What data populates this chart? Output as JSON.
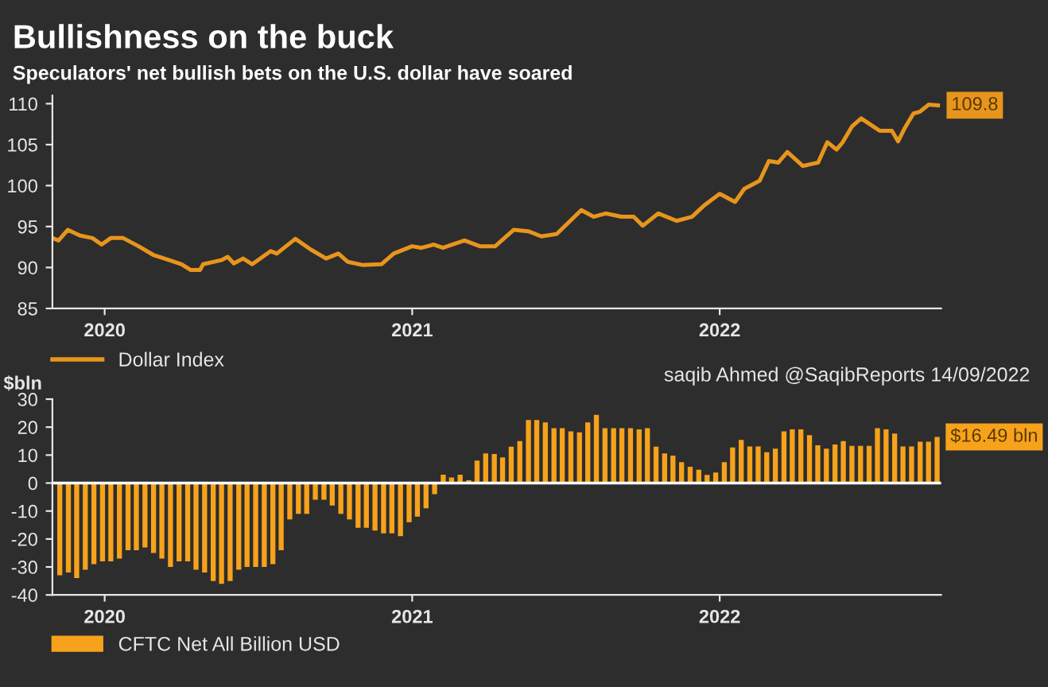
{
  "chart_data": [
    {
      "type": "line",
      "title": "Bullishness on the buck",
      "subtitle": "Speculators' net bullish bets on the U.S. dollar have soared",
      "xlim": [
        2019.83,
        2022.72
      ],
      "xticks": [
        2020,
        2021,
        2022
      ],
      "ylim": [
        85,
        111
      ],
      "yticks": [
        85,
        90,
        95,
        100,
        105,
        110
      ],
      "grid": false,
      "legend": "bottom left",
      "marker": "none",
      "line_style": "solid",
      "series": [
        {
          "name": "Dollar Index",
          "color": "#e8951d",
          "x": [
            2019.83,
            2019.85,
            2019.88,
            2019.92,
            2019.96,
            2019.99,
            2020.02,
            2020.06,
            2020.11,
            2020.16,
            2020.21,
            2020.25,
            2020.28,
            2020.31,
            2020.32,
            2020.38,
            2020.4,
            2020.42,
            2020.45,
            2020.48,
            2020.54,
            2020.56,
            2020.62,
            2020.67,
            2020.72,
            2020.76,
            2020.79,
            2020.84,
            2020.9,
            2020.94,
            2021.0,
            2021.03,
            2021.07,
            2021.1,
            2021.17,
            2021.22,
            2021.27,
            2021.33,
            2021.38,
            2021.42,
            2021.47,
            2021.55,
            2021.59,
            2021.63,
            2021.68,
            2021.72,
            2021.75,
            2021.8,
            2021.86,
            2021.91,
            2021.95,
            2022.0,
            2022.05,
            2022.08,
            2022.13,
            2022.16,
            2022.19,
            2022.22,
            2022.27,
            2022.32,
            2022.35,
            2022.38,
            2022.4,
            2022.43,
            2022.46,
            2022.52,
            2022.56,
            2022.58,
            2022.6,
            2022.63,
            2022.65,
            2022.68,
            2022.71
          ],
          "values": [
            93.6,
            93.3,
            94.6,
            93.9,
            93.6,
            92.8,
            93.6,
            93.6,
            92.6,
            91.5,
            90.9,
            90.4,
            89.7,
            89.7,
            90.4,
            90.9,
            91.3,
            90.5,
            91.1,
            90.4,
            92.0,
            91.7,
            93.5,
            92.2,
            91.1,
            91.7,
            90.7,
            90.3,
            90.4,
            91.7,
            92.6,
            92.4,
            92.8,
            92.4,
            93.3,
            92.6,
            92.6,
            94.6,
            94.4,
            93.8,
            94.1,
            97.0,
            96.2,
            96.6,
            96.2,
            96.2,
            95.1,
            96.6,
            95.7,
            96.2,
            97.6,
            99.0,
            98.0,
            99.6,
            100.6,
            103.0,
            102.8,
            104.1,
            102.4,
            102.8,
            105.3,
            104.4,
            105.3,
            107.2,
            108.2,
            106.7,
            106.7,
            105.4,
            106.9,
            108.8,
            109.0,
            109.9,
            109.8
          ]
        }
      ],
      "annotations": [
        {
          "text": "109.8",
          "x": 2022.71,
          "y": 109.8
        }
      ]
    },
    {
      "type": "bar",
      "ylabel": "$bln",
      "xlim": [
        2019.83,
        2022.72
      ],
      "xticks": [
        2020,
        2021,
        2022
      ],
      "ylim": [
        -40,
        30
      ],
      "yticks": [
        -40,
        -30,
        -20,
        -10,
        0,
        10,
        20,
        30
      ],
      "grid": false,
      "legend": "bottom left",
      "ref_lines": [
        {
          "axis": "y",
          "value": 0,
          "color": "#ffffff"
        }
      ],
      "series": [
        {
          "name": "CFTC Net All Billion USD",
          "color": "#f7a21b",
          "x": [
            2019.854,
            2019.882,
            2019.909,
            2019.937,
            2019.965,
            2019.993,
            2020.02,
            2020.048,
            2020.076,
            2020.103,
            2020.131,
            2020.159,
            2020.186,
            2020.214,
            2020.242,
            2020.27,
            2020.297,
            2020.325,
            2020.353,
            2020.38,
            2020.408,
            2020.436,
            2020.463,
            2020.491,
            2020.519,
            2020.547,
            2020.574,
            2020.602,
            2020.63,
            2020.657,
            2020.685,
            2020.713,
            2020.74,
            2020.768,
            2020.796,
            2020.824,
            2020.851,
            2020.879,
            2020.907,
            2020.934,
            2020.962,
            2020.99,
            2021.017,
            2021.045,
            2021.073,
            2021.101,
            2021.128,
            2021.156,
            2021.184,
            2021.211,
            2021.239,
            2021.267,
            2021.294,
            2021.322,
            2021.35,
            2021.378,
            2021.405,
            2021.433,
            2021.461,
            2021.488,
            2021.516,
            2021.544,
            2021.571,
            2021.599,
            2021.627,
            2021.655,
            2021.682,
            2021.71,
            2021.738,
            2021.765,
            2021.793,
            2021.821,
            2021.848,
            2021.876,
            2021.904,
            2021.932,
            2021.959,
            2021.987,
            2022.015,
            2022.042,
            2022.07,
            2022.098,
            2022.125,
            2022.153,
            2022.181,
            2022.209,
            2022.236,
            2022.264,
            2022.292,
            2022.319,
            2022.347,
            2022.375,
            2022.402,
            2022.43,
            2022.458,
            2022.486,
            2022.513,
            2022.541,
            2022.569,
            2022.596,
            2022.624,
            2022.652,
            2022.679,
            2022.707
          ],
          "values": [
            -33,
            -32,
            -34,
            -31,
            -29,
            -28,
            -28,
            -27,
            -24,
            -24,
            -23,
            -25,
            -27,
            -30,
            -28,
            -28,
            -31,
            -32,
            -35,
            -36,
            -35,
            -31,
            -30,
            -30,
            -30,
            -29,
            -24,
            -13,
            -11,
            -11,
            -6,
            -6,
            -8,
            -11,
            -13,
            -16,
            -16,
            -17,
            -18,
            -18,
            -19,
            -14,
            -12,
            -9,
            -4,
            3,
            2,
            3,
            1,
            8,
            10.6,
            10.4,
            9.2,
            13,
            15,
            22.5,
            22.5,
            21.7,
            19.6,
            19.6,
            18.5,
            18.1,
            21.7,
            24.4,
            19.6,
            19.6,
            19.6,
            19.6,
            19.2,
            19.6,
            13,
            10.6,
            9.8,
            7.5,
            5.8,
            4.8,
            2.9,
            3.8,
            7.5,
            12.7,
            15.4,
            13.1,
            13.1,
            11,
            12.3,
            18.5,
            19.2,
            19.2,
            17.1,
            13.5,
            12.3,
            13.8,
            15,
            13.3,
            13.3,
            13.3,
            19.6,
            19.2,
            17.7,
            13.1,
            13.1,
            14.8,
            14.8,
            16.49
          ]
        }
      ],
      "annotations": [
        "saqib Ahmed @SaqibReports 14/09/2022",
        {
          "text": "$16.49 bln",
          "x": 2022.707,
          "y": 16.49
        }
      ]
    }
  ]
}
